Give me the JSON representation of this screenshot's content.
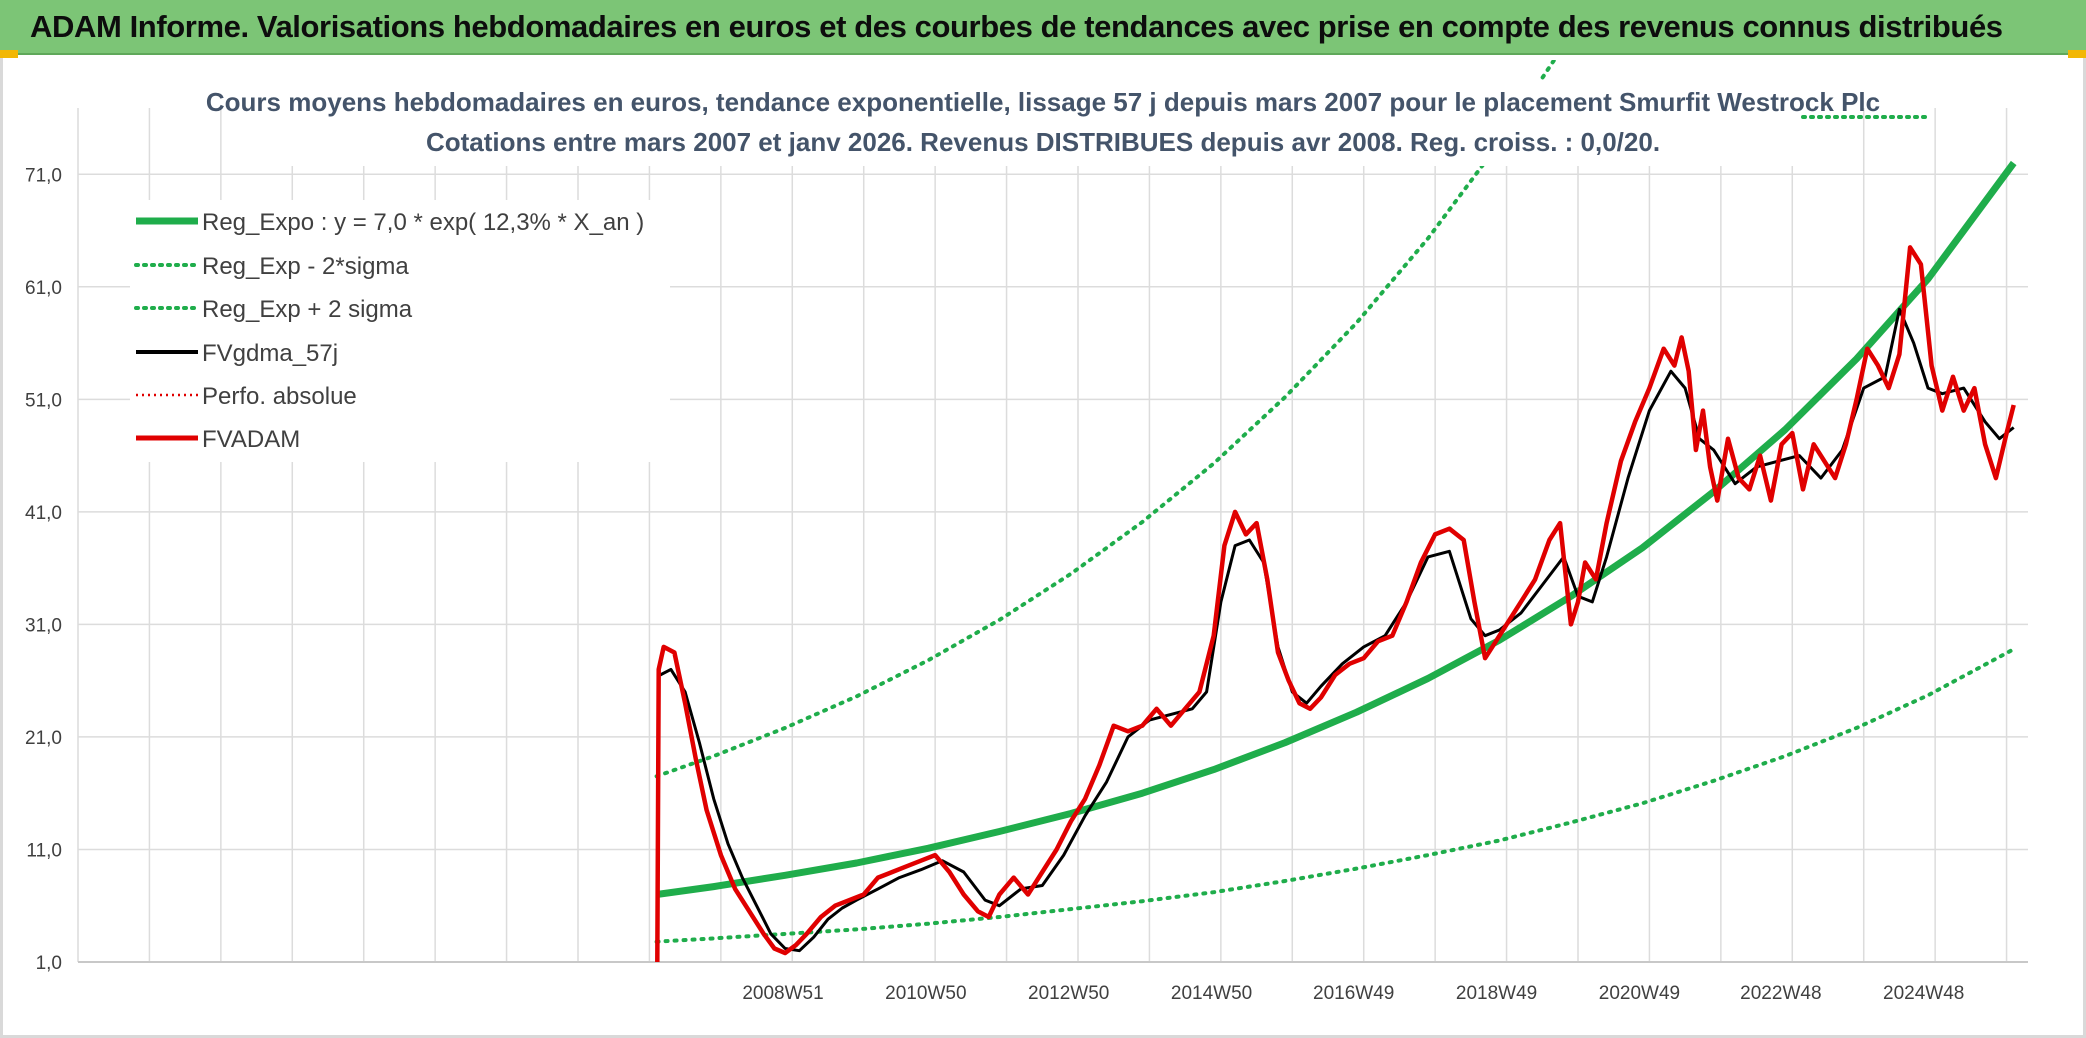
{
  "header": {
    "title": "ADAM Informe. Valorisations hebdomadaires en euros et des courbes de tendances avec prise en compte des revenus connus distribués"
  },
  "colors": {
    "header_bg": "#7cc576",
    "reg_expo": "#1fad4b",
    "sigma_bands": "#1fad4b",
    "fvgdma": "#000000",
    "perfo": "#e00000",
    "fvadam": "#e00000",
    "corner_accent": "#f2b705"
  },
  "chart_data": {
    "type": "line",
    "title_line1": "Cours moyens hebdomadaires en euros, tendance exponentielle, lissage 57 j depuis mars 2007 pour le placement Smurfit Westrock Plc",
    "title_line2": "Cotations entre mars 2007 et janv 2026. Revenus DISTRIBUES depuis avr 2008. Reg. croiss. : 0,0/20.",
    "ylim": [
      1,
      76
    ],
    "y_ticks": [
      "71,0",
      "61,0",
      "51,0",
      "41,0",
      "31,0",
      "21,0",
      "11,0",
      "1,0"
    ],
    "y_tick_values": [
      71,
      61,
      51,
      41,
      31,
      21,
      11,
      1
    ],
    "x_range_years": [
      1999.1,
      2026.4
    ],
    "x_ticks": [
      "2008W51",
      "2010W50",
      "2012W50",
      "2014W50",
      "2016W49",
      "2018W49",
      "2020W49",
      "2022W48",
      "2024W48"
    ],
    "x_tick_years": [
      2008.97,
      2010.97,
      2012.97,
      2014.97,
      2016.96,
      2018.96,
      2020.96,
      2022.94,
      2024.94
    ],
    "legend_position": "top-left",
    "grid": true,
    "series": [
      {
        "name": "Reg_Expo : y = 7,0 * exp( 12,3% *  X_an )",
        "style": "solid-thick",
        "color": "#1fad4b",
        "x": [
          2007.2,
          2008,
          2009,
          2010,
          2011,
          2012,
          2013,
          2014,
          2015,
          2016,
          2017,
          2018,
          2019,
          2020,
          2021,
          2022,
          2023,
          2024,
          2025,
          2026.2
        ],
        "y": [
          7.0,
          7.7,
          8.7,
          9.8,
          11.1,
          12.6,
          14.2,
          16.0,
          18.1,
          20.5,
          23.2,
          26.2,
          29.6,
          33.5,
          37.8,
          42.8,
          48.3,
          54.6,
          61.7,
          72.0
        ]
      },
      {
        "name": "Reg_Exp - 2*sigma",
        "style": "dotted",
        "color": "#1fad4b",
        "x": [
          2007.2,
          2008,
          2009,
          2010,
          2011,
          2012,
          2013,
          2014,
          2015,
          2016,
          2017,
          2018,
          2019,
          2020,
          2021,
          2022,
          2023,
          2024,
          2025,
          2026.2
        ],
        "y": [
          2.8,
          3.1,
          3.5,
          3.9,
          4.4,
          5.0,
          5.7,
          6.4,
          7.2,
          8.2,
          9.3,
          10.5,
          11.8,
          13.4,
          15.1,
          17.1,
          19.3,
          21.8,
          24.7,
          28.8
        ]
      },
      {
        "name": "Reg_Exp + 2 sigma",
        "style": "dotted",
        "color": "#1fad4b",
        "x": [
          2007.2,
          2008,
          2009,
          2010,
          2011,
          2012,
          2013,
          2014,
          2015,
          2016,
          2017,
          2018,
          2019,
          2020
        ],
        "y": [
          17.5,
          19.3,
          21.8,
          24.6,
          27.8,
          31.4,
          35.5,
          40.1,
          45.3,
          51.2,
          57.8,
          65.3,
          73.8,
          83.4
        ]
      },
      {
        "name": "FVgdma_57j",
        "style": "solid",
        "color": "#000000",
        "x": [
          2007.25,
          2007.4,
          2007.6,
          2007.8,
          2008.0,
          2008.2,
          2008.4,
          2008.6,
          2008.8,
          2009.0,
          2009.2,
          2009.4,
          2009.6,
          2009.8,
          2010.0,
          2010.3,
          2010.6,
          2010.9,
          2011.2,
          2011.5,
          2011.8,
          2012.0,
          2012.3,
          2012.6,
          2012.9,
          2013.2,
          2013.5,
          2013.8,
          2014.1,
          2014.4,
          2014.7,
          2014.9,
          2015.1,
          2015.3,
          2015.5,
          2015.7,
          2015.9,
          2016.1,
          2016.3,
          2016.5,
          2016.8,
          2017.1,
          2017.4,
          2017.7,
          2018.0,
          2018.3,
          2018.6,
          2018.8,
          2019.0,
          2019.3,
          2019.6,
          2019.9,
          2020.1,
          2020.3,
          2020.5,
          2020.8,
          2021.1,
          2021.4,
          2021.6,
          2021.8,
          2022.0,
          2022.3,
          2022.6,
          2022.9,
          2023.2,
          2023.5,
          2023.8,
          2024.1,
          2024.4,
          2024.6,
          2024.8,
          2025.0,
          2025.2,
          2025.5,
          2025.8,
          2026.0,
          2026.2
        ],
        "y": [
          26.5,
          27.0,
          25.0,
          20.5,
          15.5,
          11.5,
          8.5,
          6.0,
          3.5,
          2.2,
          2.0,
          3.2,
          4.8,
          5.8,
          6.5,
          7.5,
          8.5,
          9.2,
          10.0,
          9.0,
          6.5,
          6.0,
          7.5,
          7.8,
          10.5,
          14.0,
          17.0,
          21.0,
          22.5,
          23.0,
          23.5,
          25.0,
          33.0,
          38.0,
          38.5,
          36.5,
          29.0,
          25.0,
          24.0,
          25.5,
          27.5,
          29.0,
          30.0,
          33.0,
          37.0,
          37.5,
          31.5,
          30.0,
          30.5,
          32.0,
          34.5,
          37.0,
          33.5,
          33.0,
          37.0,
          44.0,
          50.0,
          53.5,
          52.0,
          47.5,
          46.5,
          43.5,
          45.0,
          45.5,
          46.0,
          44.0,
          46.5,
          52.0,
          53.0,
          59.0,
          56.0,
          52.0,
          51.5,
          52.0,
          49.0,
          47.5,
          48.5
        ]
      },
      {
        "name": "Perfo. absolue",
        "style": "dotted",
        "color": "#e00000",
        "x": [],
        "y": []
      },
      {
        "name": "FVADAM",
        "style": "solid-thick",
        "color": "#e00000",
        "x": [
          2007.21,
          2007.23,
          2007.3,
          2007.45,
          2007.6,
          2007.75,
          2007.9,
          2008.1,
          2008.3,
          2008.5,
          2008.7,
          2008.85,
          2009.0,
          2009.15,
          2009.3,
          2009.5,
          2009.7,
          2009.9,
          2010.1,
          2010.3,
          2010.5,
          2010.7,
          2010.9,
          2011.1,
          2011.3,
          2011.5,
          2011.7,
          2011.85,
          2012.0,
          2012.2,
          2012.4,
          2012.6,
          2012.8,
          2013.0,
          2013.2,
          2013.4,
          2013.6,
          2013.8,
          2014.0,
          2014.2,
          2014.4,
          2014.6,
          2014.8,
          2015.0,
          2015.15,
          2015.3,
          2015.45,
          2015.6,
          2015.75,
          2015.9,
          2016.05,
          2016.2,
          2016.35,
          2016.5,
          2016.7,
          2016.9,
          2017.1,
          2017.3,
          2017.5,
          2017.7,
          2017.9,
          2018.1,
          2018.3,
          2018.5,
          2018.65,
          2018.8,
          2018.95,
          2019.1,
          2019.3,
          2019.5,
          2019.7,
          2019.85,
          2020.0,
          2020.1,
          2020.2,
          2020.35,
          2020.5,
          2020.7,
          2020.9,
          2021.1,
          2021.3,
          2021.45,
          2021.55,
          2021.65,
          2021.75,
          2021.85,
          2021.95,
          2022.05,
          2022.2,
          2022.35,
          2022.5,
          2022.65,
          2022.8,
          2022.95,
          2023.1,
          2023.25,
          2023.4,
          2023.55,
          2023.7,
          2023.85,
          2024.0,
          2024.15,
          2024.3,
          2024.45,
          2024.6,
          2024.75,
          2024.9,
          2025.05,
          2025.2,
          2025.35,
          2025.5,
          2025.65,
          2025.8,
          2025.95,
          2026.1,
          2026.2
        ],
        "y": [
          1.0,
          27.0,
          29.0,
          28.5,
          24.0,
          19.0,
          14.5,
          10.5,
          7.5,
          5.5,
          3.5,
          2.2,
          1.8,
          2.5,
          3.5,
          5.0,
          6.0,
          6.5,
          7.0,
          8.5,
          9.0,
          9.5,
          10.0,
          10.5,
          9.0,
          7.0,
          5.5,
          5.0,
          7.0,
          8.5,
          7.0,
          9.0,
          11.0,
          13.5,
          15.5,
          18.5,
          22.0,
          21.5,
          22.0,
          23.5,
          22.0,
          23.5,
          25.0,
          30.0,
          38.0,
          41.0,
          39.0,
          40.0,
          35.0,
          28.5,
          26.0,
          24.0,
          23.5,
          24.5,
          26.5,
          27.5,
          28.0,
          29.5,
          30.0,
          33.0,
          36.5,
          39.0,
          39.5,
          38.5,
          33.0,
          28.0,
          29.5,
          31.0,
          33.0,
          35.0,
          38.5,
          40.0,
          31.0,
          33.0,
          36.5,
          35.0,
          40.0,
          45.5,
          49.0,
          52.0,
          55.5,
          54.0,
          56.5,
          53.5,
          46.5,
          50.0,
          45.0,
          42.0,
          47.5,
          44.0,
          43.0,
          46.0,
          42.0,
          47.0,
          48.0,
          43.0,
          47.0,
          45.5,
          44.0,
          47.0,
          51.0,
          55.5,
          54.0,
          52.0,
          55.0,
          64.5,
          63.0,
          54.0,
          50.0,
          53.0,
          50.0,
          52.0,
          47.0,
          44.0,
          48.0,
          50.5
        ]
      }
    ]
  }
}
